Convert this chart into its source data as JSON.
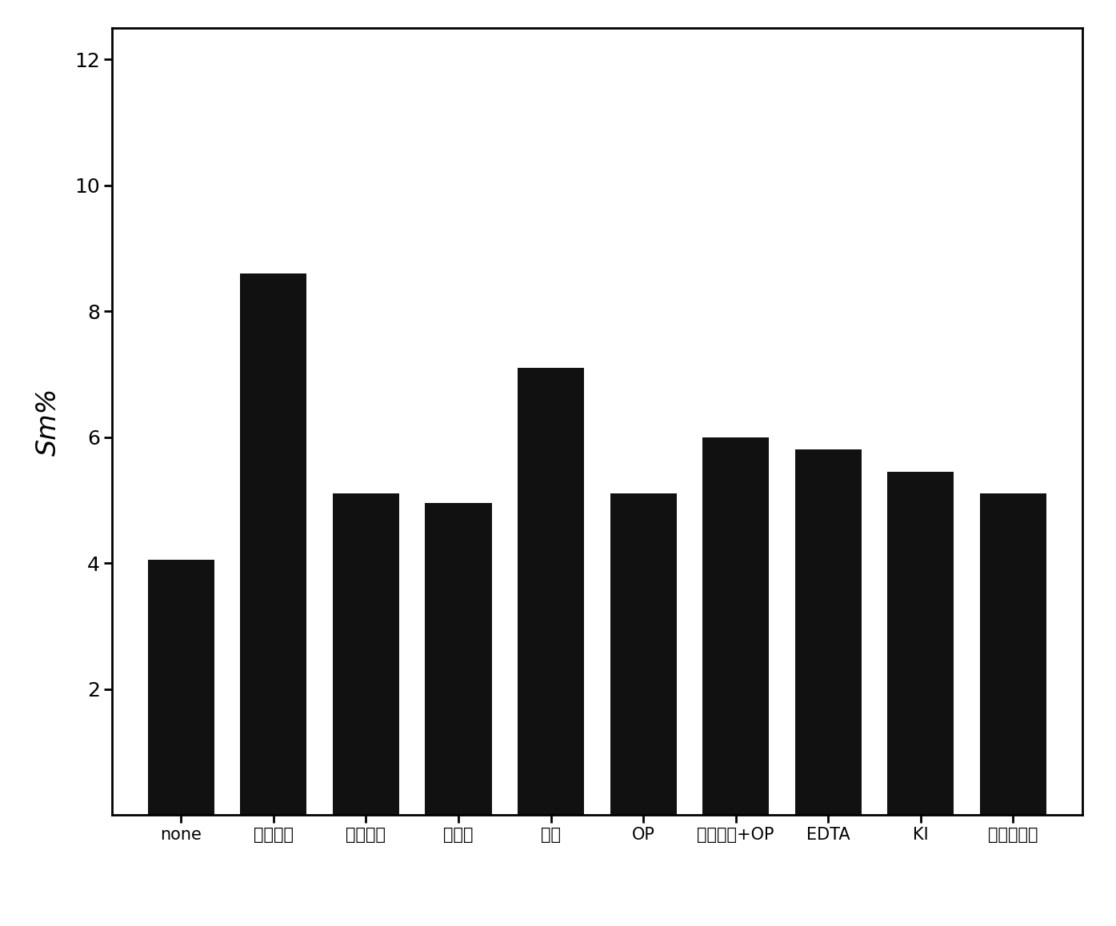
{
  "categories": [
    "none",
    "三乙醜胺",
    "聚乙二醜",
    "阐活绫",
    "明胶",
    "OP",
    "聚乙二醜+OP",
    "EDTA",
    "KI",
    "聚丙烯吐胺"
  ],
  "values": [
    4.05,
    8.6,
    5.1,
    4.95,
    7.1,
    5.1,
    6.0,
    5.8,
    5.45,
    5.1
  ],
  "bar_color": "#111111",
  "ylabel": "Sm%",
  "ylim": [
    0,
    12.5
  ],
  "yticks": [
    2,
    4,
    6,
    8,
    10,
    12
  ],
  "background_color": "#ffffff",
  "bar_width": 0.72,
  "ylabel_fontsize": 24,
  "tick_fontsize": 18,
  "xtick_fontsize": 15
}
